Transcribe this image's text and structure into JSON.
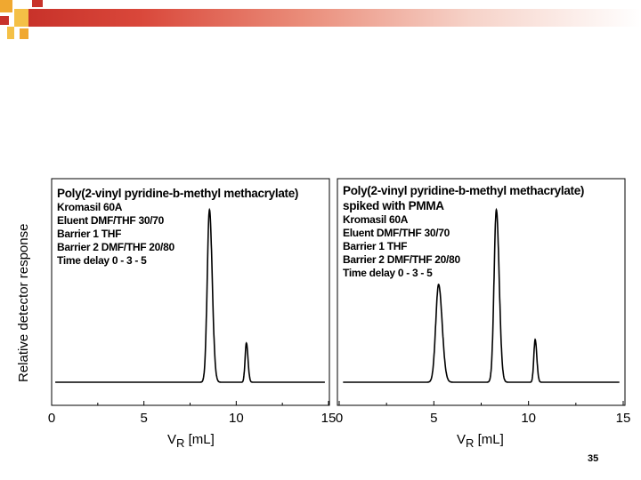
{
  "theme": {
    "accent": "#c8322a",
    "accent_light": "#f0a830",
    "line_color": "#000000"
  },
  "chart_data": [
    {
      "type": "line",
      "title": "Poly(2-vinyl pyridine-b-methyl methacrylate)",
      "annotations": [
        "Kromasil 60A",
        "Eluent DMF/THF  30/70",
        "Barrier 1  THF",
        "Barrier 2  DMF/THF  20/80",
        "Time delay  0 - 3 - 5"
      ],
      "xlabel": "V",
      "xlabel_sub": "R",
      "xlabel_unit": " [mL]",
      "ylabel": "Relative detector response",
      "xlim": [
        0,
        15
      ],
      "ylim": [
        0,
        1
      ],
      "xticks": [
        0,
        5,
        10,
        15
      ],
      "xtick_labels": [
        "0",
        "5",
        "10",
        "15"
      ],
      "baseline": 0.01,
      "peaks": [
        {
          "center": 8.55,
          "height": 0.97,
          "width": 0.12
        },
        {
          "center": 10.55,
          "height": 0.22,
          "width": 0.07
        }
      ]
    },
    {
      "type": "line",
      "title": "Poly(2-vinyl pyridine-b-methyl methacrylate)",
      "title_line2": "spiked with PMMA",
      "annotations": [
        "Kromasil 60A",
        "Eluent DMF/THF  30/70",
        "Barrier 1  THF",
        "Barrier 2  DMF/THF  20/80",
        "Time delay  0 - 3 - 5"
      ],
      "xlabel": "V",
      "xlabel_sub": "R",
      "xlabel_unit": " [mL]",
      "xlim": [
        0,
        15
      ],
      "ylim": [
        0,
        1
      ],
      "xticks": [
        0,
        5,
        10,
        15
      ],
      "xtick_labels": [
        "0",
        "5",
        "10",
        "15"
      ],
      "baseline": 0.01,
      "peaks": [
        {
          "center": 5.25,
          "height": 0.55,
          "width": 0.15
        },
        {
          "center": 8.3,
          "height": 0.97,
          "width": 0.12
        },
        {
          "center": 10.35,
          "height": 0.24,
          "width": 0.07
        }
      ]
    }
  ],
  "footer": {
    "page_number": "35"
  }
}
